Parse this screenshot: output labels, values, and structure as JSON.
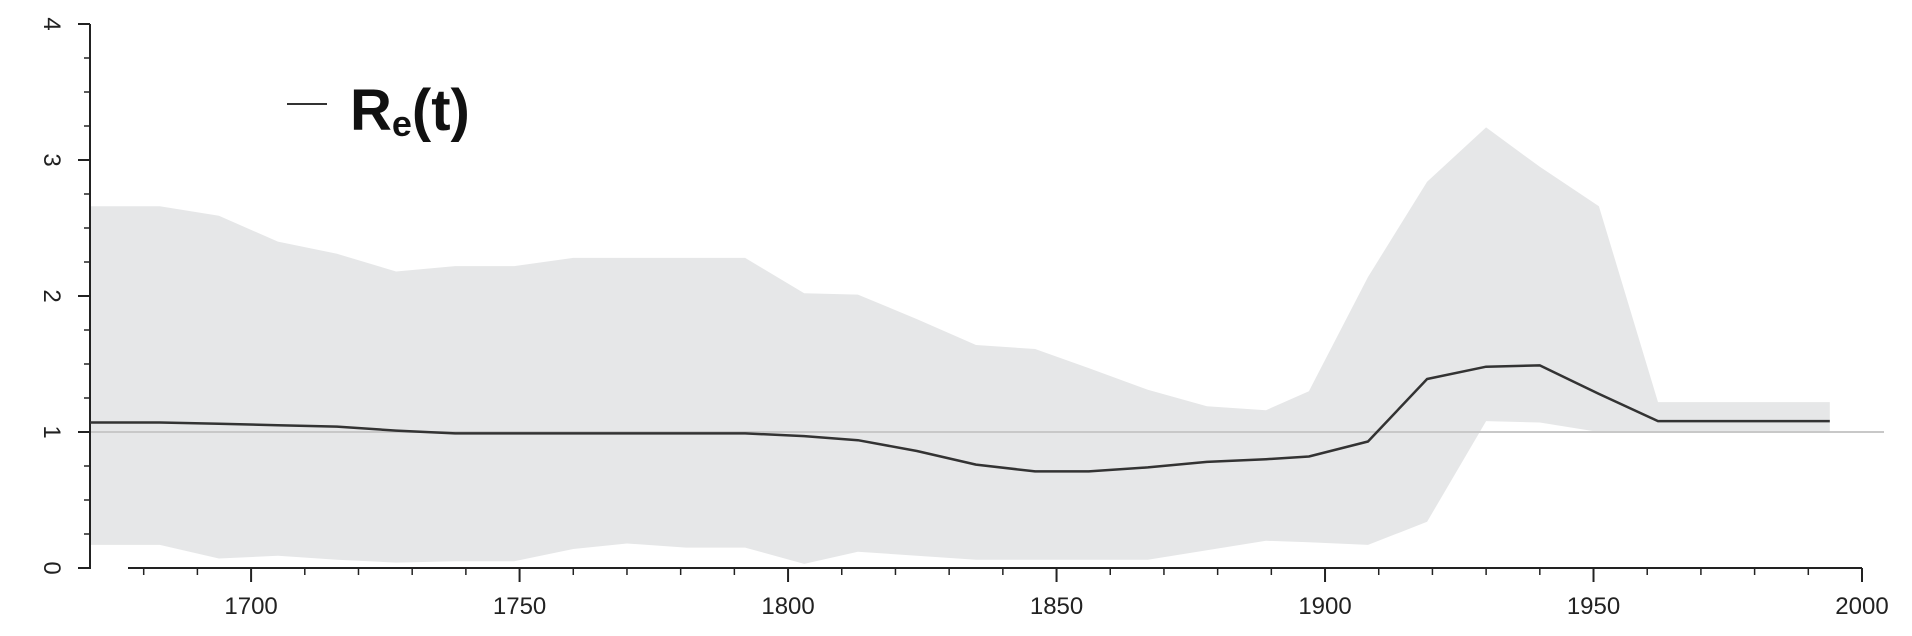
{
  "chart_data": {
    "type": "line",
    "title": "",
    "xlabel": "",
    "ylabel": "",
    "xlim": [
      1670,
      2000
    ],
    "ylim": [
      0,
      4
    ],
    "x_ticks": [
      1700,
      1750,
      1800,
      1850,
      1900,
      1950,
      2000
    ],
    "y_ticks": [
      0,
      1,
      2,
      3,
      4
    ],
    "reference_line": 1,
    "legend": {
      "position": "top-left",
      "label_main": "R",
      "label_sub": "e",
      "label_tail": "(t)"
    },
    "series": [
      {
        "name": "Re(t)",
        "x": [
          1670,
          1683,
          1694,
          1705,
          1716,
          1727,
          1738,
          1749,
          1760,
          1770,
          1781,
          1792,
          1803,
          1813,
          1824,
          1835,
          1846,
          1856,
          1867,
          1878,
          1889,
          1897,
          1908,
          1919,
          1930,
          1940,
          1951,
          1962,
          1973,
          1984,
          1994
        ],
        "y": [
          1.07,
          1.07,
          1.06,
          1.05,
          1.04,
          1.01,
          0.99,
          0.99,
          0.99,
          0.99,
          0.99,
          0.99,
          0.97,
          0.94,
          0.86,
          0.76,
          0.71,
          0.71,
          0.74,
          0.78,
          0.8,
          0.82,
          0.93,
          1.39,
          1.48,
          1.49,
          1.28,
          1.08,
          1.08,
          1.08,
          1.08
        ],
        "lower": [
          0.17,
          0.17,
          0.07,
          0.09,
          0.06,
          0.04,
          0.05,
          0.05,
          0.14,
          0.18,
          0.15,
          0.15,
          0.03,
          0.12,
          0.09,
          0.06,
          0.06,
          0.06,
          0.06,
          0.13,
          0.2,
          0.19,
          0.17,
          0.34,
          1.08,
          1.07,
          1.0,
          1.0,
          1.0,
          1.0,
          1.0
        ],
        "upper": [
          2.66,
          2.66,
          2.59,
          2.4,
          2.31,
          2.18,
          2.22,
          2.22,
          2.28,
          2.28,
          2.28,
          2.28,
          2.02,
          2.01,
          1.83,
          1.64,
          1.61,
          1.47,
          1.31,
          1.19,
          1.16,
          1.3,
          2.14,
          2.84,
          3.24,
          2.95,
          2.66,
          1.22,
          1.22,
          1.22,
          1.22
        ],
        "color": "#333333",
        "band_color": "#e6e7e8"
      }
    ]
  }
}
